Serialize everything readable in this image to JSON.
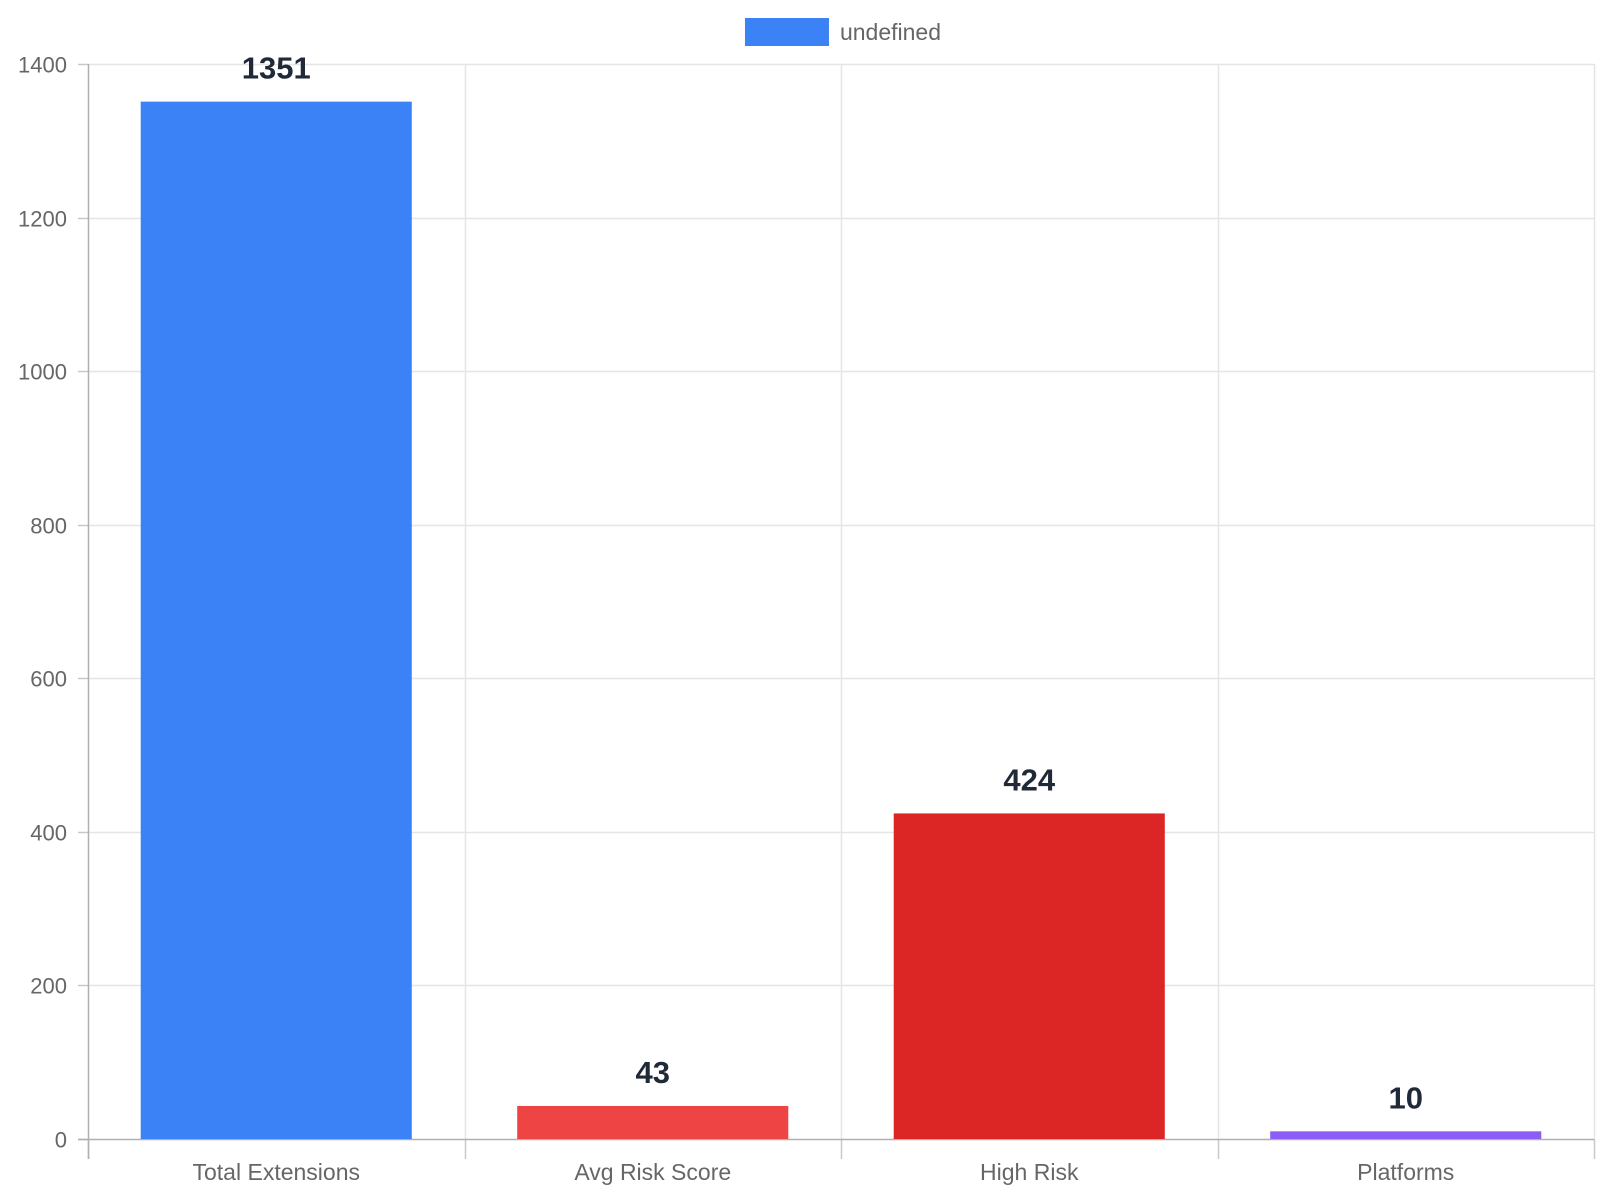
{
  "chart_data": {
    "type": "bar",
    "categories": [
      "Total Extensions",
      "Avg Risk Score",
      "High Risk",
      "Platforms"
    ],
    "series": [
      {
        "name": "undefined",
        "values": [
          1351,
          43,
          424,
          10
        ],
        "colors": [
          "#3b82f6",
          "#ef4444",
          "#dc2626",
          "#8b5cf6"
        ]
      }
    ],
    "data_labels": [
      "1351",
      "43",
      "424",
      "10"
    ],
    "legend": {
      "label": "undefined",
      "color": "#3b82f6",
      "position": "top"
    },
    "ylim": [
      0,
      1400
    ],
    "yticks": [
      0,
      200,
      400,
      600,
      800,
      1000,
      1200,
      1400
    ],
    "grid": true,
    "title": "",
    "xlabel": "",
    "ylabel": ""
  }
}
